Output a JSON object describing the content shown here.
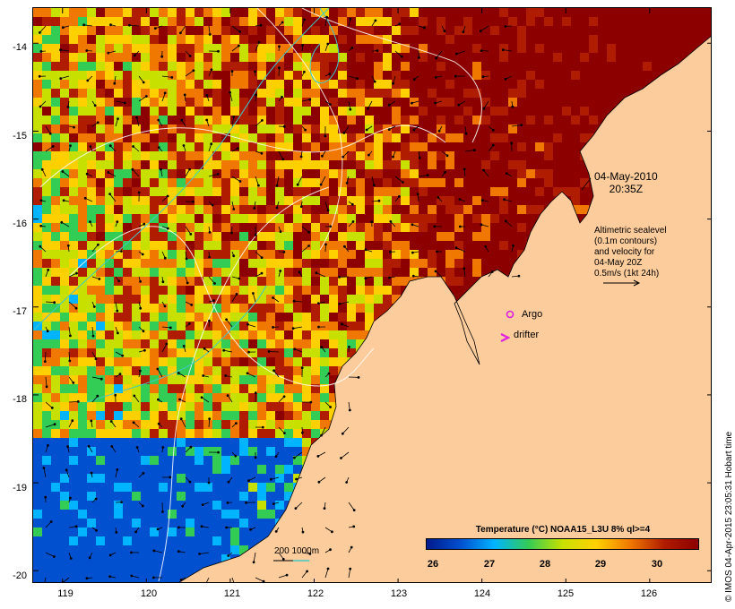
{
  "map": {
    "lon_ticks": [
      "119",
      "120",
      "121",
      "122",
      "123",
      "124",
      "125",
      "126"
    ],
    "lat_ticks": [
      "-14",
      "-15",
      "-16",
      "-17",
      "-18",
      "-19",
      "-20"
    ],
    "lon_range": [
      118.65,
      126.75
    ],
    "lat_range": [
      -20.15,
      -13.6
    ],
    "land_color": "#fdcc9c",
    "sst_palette": [
      "#001a8c",
      "#0050d0",
      "#00b4ff",
      "#33cc55",
      "#c8e000",
      "#ffd000",
      "#f07800",
      "#b01c00",
      "#8c0000"
    ]
  },
  "annotations": {
    "date": "04-May-2010",
    "time": "20:35Z",
    "altimetry_lines": [
      "Altimetric sealevel",
      "(0.1m contours)",
      "and velocity for",
      "04-May 20Z",
      "0.5m/s (1kt 24h)"
    ],
    "argo": "Argo",
    "drifter": "drifter",
    "isobaths": "200  1000m"
  },
  "colorbar": {
    "title": "Temperature (°C) NOAA15_L3U 8% ql>=4",
    "ticks": [
      "26",
      "27",
      "28",
      "29",
      "30"
    ]
  },
  "credit": "© IMOS 04-Apr-2015 23:05:31 Hobart time"
}
